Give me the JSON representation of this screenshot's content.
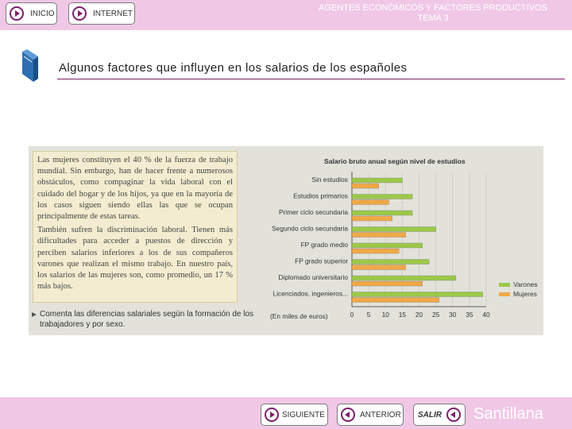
{
  "header": {
    "title_line1": "AGENTES ECONÓMICOS Y FACTORES PRODUCTIVOS",
    "title_line2": "TEMA 3",
    "nav": [
      {
        "label": "INICIO",
        "icon": "play-right-icon"
      },
      {
        "label": "INTERNET",
        "icon": "play-right-icon"
      }
    ]
  },
  "page_title": "Algunos factores que influyen en los salarios de los españoles",
  "text_paragraphs": [
    "Las mujeres constituyen el 40 % de la fuerza de trabajo mundial. Sin embargo, han de hacer frente a numerosos obstáculos, como compaginar la vida laboral con el cuidado del hogar y de los hijos, ya que en la mayoría de los casos siguen siendo ellas las que se ocupan principalmente de estas tareas.",
    "También sufren la discriminación laboral. Tienen más dificultades para acceder a puestos de dirección y perciben salarios inferiores a los de sus compañeros varones que realizan el mismo trabajo. En nuestro país, los salarios de las mujeres son, como promedio, un 17 % más bajos."
  ],
  "exercise": "Comenta las diferencias salariales según la formación de los trabajadores y por sexo.",
  "chart_data": {
    "type": "bar",
    "orientation": "horizontal",
    "title": "Salario bruto anual según nivel de estudios",
    "categories": [
      "Sin estudios",
      "Estudios primarios",
      "Primer ciclo secundaria",
      "Segundo ciclo secundaria",
      "FP grado medio",
      "FP grado superior",
      "Diplomado universitario",
      "Licenciados, ingenieros..."
    ],
    "series": [
      {
        "name": "Varones",
        "color": "#9cc84a",
        "values": [
          15,
          18,
          18,
          25,
          21,
          23,
          31,
          39
        ]
      },
      {
        "name": "Mujeres",
        "color": "#f0a848",
        "values": [
          8,
          11,
          12,
          16,
          14,
          16,
          21,
          26
        ]
      }
    ],
    "xlabel": "(En miles de euros)",
    "xlim": [
      0,
      40
    ],
    "xticks": [
      "0",
      "5",
      "10",
      "15",
      "20",
      "25",
      "30",
      "35",
      "40"
    ],
    "legend": "right",
    "grid": true
  },
  "footer": {
    "siguiente": "SIGUIENTE",
    "anterior": "ANTERIOR",
    "salir": "SALIR",
    "brand": "Santillana"
  },
  "colors": {
    "bar_background": "#f0c8e6",
    "accent": "#7d1f6b",
    "text_box": "#f3ecd0",
    "panel": "#e2e2db"
  }
}
